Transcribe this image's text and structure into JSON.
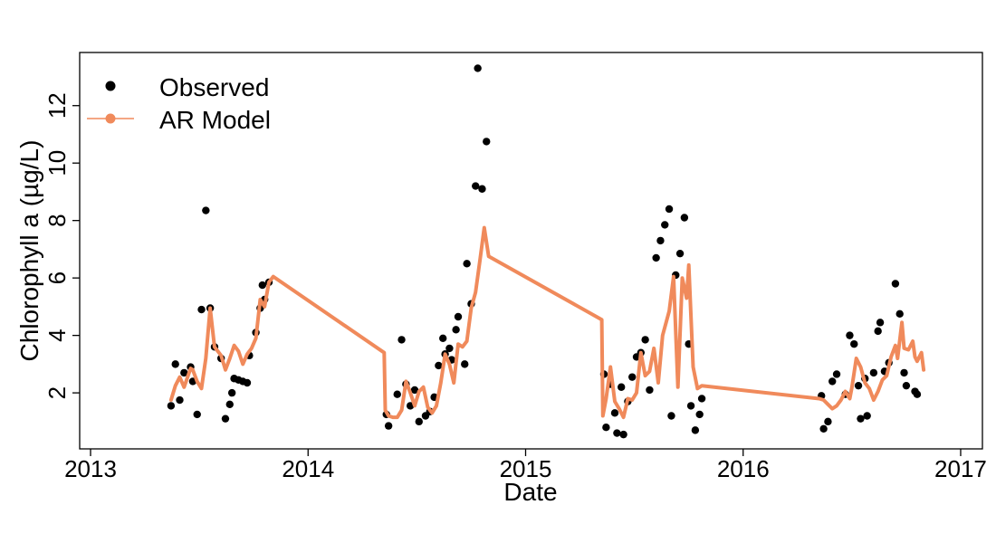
{
  "chart_data": {
    "type": "line",
    "xlabel": "Date",
    "ylabel": "Chlorophyll a (µg/L)",
    "xlim": [
      2012.95,
      2017.1
    ],
    "ylim": [
      0.05,
      13.85
    ],
    "x_ticks": [
      2013,
      2014,
      2015,
      2016,
      2017
    ],
    "y_ticks": [
      2,
      4,
      6,
      8,
      10,
      12
    ],
    "legend_position": "top-left",
    "grid": false,
    "series": [
      {
        "name": "Observed",
        "kind": "points",
        "color": "#000000",
        "points": [
          [
            2013.37,
            1.55
          ],
          [
            2013.39,
            3.0
          ],
          [
            2013.41,
            1.75
          ],
          [
            2013.43,
            2.7
          ],
          [
            2013.46,
            2.9
          ],
          [
            2013.47,
            2.4
          ],
          [
            2013.49,
            1.25
          ],
          [
            2013.51,
            4.9
          ],
          [
            2013.53,
            8.35
          ],
          [
            2013.55,
            4.95
          ],
          [
            2013.57,
            3.6
          ],
          [
            2013.6,
            3.2
          ],
          [
            2013.62,
            1.1
          ],
          [
            2013.64,
            1.6
          ],
          [
            2013.65,
            2.0
          ],
          [
            2013.66,
            2.5
          ],
          [
            2013.68,
            2.45
          ],
          [
            2013.7,
            2.4
          ],
          [
            2013.72,
            2.35
          ],
          [
            2013.73,
            3.3
          ],
          [
            2013.76,
            4.1
          ],
          [
            2013.78,
            4.95
          ],
          [
            2013.79,
            5.75
          ],
          [
            2013.8,
            5.25
          ],
          [
            2013.82,
            5.85
          ],
          [
            2014.36,
            1.25
          ],
          [
            2014.37,
            0.85
          ],
          [
            2014.41,
            1.95
          ],
          [
            2014.43,
            3.85
          ],
          [
            2014.45,
            2.3
          ],
          [
            2014.47,
            1.55
          ],
          [
            2014.49,
            2.1
          ],
          [
            2014.51,
            1.0
          ],
          [
            2014.54,
            1.2
          ],
          [
            2014.56,
            1.35
          ],
          [
            2014.58,
            1.85
          ],
          [
            2014.6,
            2.95
          ],
          [
            2014.62,
            3.9
          ],
          [
            2014.63,
            3.35
          ],
          [
            2014.65,
            3.55
          ],
          [
            2014.66,
            3.15
          ],
          [
            2014.68,
            4.2
          ],
          [
            2014.69,
            4.65
          ],
          [
            2014.72,
            3.0
          ],
          [
            2014.73,
            6.5
          ],
          [
            2014.75,
            5.1
          ],
          [
            2014.77,
            9.2
          ],
          [
            2014.78,
            13.3
          ],
          [
            2014.8,
            9.1
          ],
          [
            2014.82,
            10.75
          ],
          [
            2015.36,
            2.65
          ],
          [
            2015.37,
            0.8
          ],
          [
            2015.39,
            2.3
          ],
          [
            2015.41,
            1.3
          ],
          [
            2015.42,
            0.6
          ],
          [
            2015.44,
            2.2
          ],
          [
            2015.45,
            0.55
          ],
          [
            2015.47,
            1.7
          ],
          [
            2015.49,
            2.55
          ],
          [
            2015.51,
            3.25
          ],
          [
            2015.53,
            3.4
          ],
          [
            2015.55,
            3.85
          ],
          [
            2015.57,
            2.1
          ],
          [
            2015.6,
            6.7
          ],
          [
            2015.62,
            7.3
          ],
          [
            2015.64,
            7.85
          ],
          [
            2015.66,
            8.4
          ],
          [
            2015.67,
            1.2
          ],
          [
            2015.69,
            6.1
          ],
          [
            2015.71,
            6.85
          ],
          [
            2015.73,
            8.1
          ],
          [
            2015.75,
            3.7
          ],
          [
            2015.76,
            1.55
          ],
          [
            2015.78,
            0.7
          ],
          [
            2015.8,
            1.25
          ],
          [
            2015.81,
            1.8
          ],
          [
            2016.36,
            1.9
          ],
          [
            2016.37,
            0.75
          ],
          [
            2016.39,
            1.0
          ],
          [
            2016.41,
            2.4
          ],
          [
            2016.43,
            2.65
          ],
          [
            2016.47,
            1.95
          ],
          [
            2016.49,
            4.0
          ],
          [
            2016.51,
            3.7
          ],
          [
            2016.53,
            2.25
          ],
          [
            2016.54,
            1.1
          ],
          [
            2016.56,
            2.5
          ],
          [
            2016.57,
            1.2
          ],
          [
            2016.6,
            2.7
          ],
          [
            2016.62,
            4.15
          ],
          [
            2016.63,
            4.45
          ],
          [
            2016.65,
            2.75
          ],
          [
            2016.67,
            3.05
          ],
          [
            2016.7,
            5.8
          ],
          [
            2016.72,
            4.75
          ],
          [
            2016.74,
            2.7
          ],
          [
            2016.75,
            2.25
          ],
          [
            2016.79,
            2.05
          ],
          [
            2016.8,
            1.95
          ]
        ]
      },
      {
        "name": "AR Model",
        "kind": "line",
        "color": "#F08A5B",
        "points": [
          [
            2013.37,
            1.75
          ],
          [
            2013.39,
            2.25
          ],
          [
            2013.41,
            2.55
          ],
          [
            2013.43,
            2.2
          ],
          [
            2013.46,
            2.85
          ],
          [
            2013.47,
            2.8
          ],
          [
            2013.49,
            2.4
          ],
          [
            2013.51,
            2.15
          ],
          [
            2013.53,
            3.2
          ],
          [
            2013.55,
            4.95
          ],
          [
            2013.57,
            3.6
          ],
          [
            2013.6,
            3.3
          ],
          [
            2013.62,
            2.8
          ],
          [
            2013.64,
            3.2
          ],
          [
            2013.66,
            3.65
          ],
          [
            2013.68,
            3.45
          ],
          [
            2013.7,
            3.0
          ],
          [
            2013.72,
            3.35
          ],
          [
            2013.74,
            3.55
          ],
          [
            2013.76,
            3.9
          ],
          [
            2013.78,
            5.25
          ],
          [
            2013.8,
            5.0
          ],
          [
            2013.82,
            5.85
          ],
          [
            2013.84,
            6.05
          ],
          [
            2014.35,
            3.4
          ],
          [
            2014.355,
            1.4
          ],
          [
            2014.37,
            1.2
          ],
          [
            2014.39,
            1.15
          ],
          [
            2014.41,
            1.15
          ],
          [
            2014.43,
            1.4
          ],
          [
            2014.45,
            2.4
          ],
          [
            2014.47,
            2.0
          ],
          [
            2014.49,
            1.55
          ],
          [
            2014.51,
            2.05
          ],
          [
            2014.53,
            2.2
          ],
          [
            2014.55,
            1.5
          ],
          [
            2014.57,
            1.3
          ],
          [
            2014.59,
            1.55
          ],
          [
            2014.61,
            2.35
          ],
          [
            2014.63,
            3.35
          ],
          [
            2014.65,
            3.0
          ],
          [
            2014.67,
            2.35
          ],
          [
            2014.69,
            3.7
          ],
          [
            2014.71,
            3.6
          ],
          [
            2014.73,
            3.8
          ],
          [
            2014.75,
            4.95
          ],
          [
            2014.77,
            5.5
          ],
          [
            2014.79,
            6.6
          ],
          [
            2014.81,
            7.75
          ],
          [
            2014.83,
            6.75
          ],
          [
            2015.35,
            4.55
          ],
          [
            2015.355,
            1.2
          ],
          [
            2015.37,
            1.8
          ],
          [
            2015.39,
            2.9
          ],
          [
            2015.41,
            1.7
          ],
          [
            2015.43,
            1.45
          ],
          [
            2015.45,
            1.15
          ],
          [
            2015.47,
            1.8
          ],
          [
            2015.49,
            1.75
          ],
          [
            2015.51,
            2.0
          ],
          [
            2015.53,
            3.4
          ],
          [
            2015.55,
            2.6
          ],
          [
            2015.57,
            2.75
          ],
          [
            2015.59,
            3.55
          ],
          [
            2015.61,
            2.35
          ],
          [
            2015.63,
            4.0
          ],
          [
            2015.66,
            4.85
          ],
          [
            2015.68,
            6.05
          ],
          [
            2015.7,
            2.2
          ],
          [
            2015.72,
            6.0
          ],
          [
            2015.74,
            5.3
          ],
          [
            2015.75,
            6.45
          ],
          [
            2015.77,
            2.9
          ],
          [
            2015.79,
            2.15
          ],
          [
            2015.81,
            2.25
          ],
          [
            2016.35,
            1.8
          ],
          [
            2016.37,
            1.75
          ],
          [
            2016.39,
            1.6
          ],
          [
            2016.41,
            1.45
          ],
          [
            2016.43,
            1.55
          ],
          [
            2016.45,
            1.75
          ],
          [
            2016.47,
            2.05
          ],
          [
            2016.49,
            1.8
          ],
          [
            2016.5,
            2.2
          ],
          [
            2016.52,
            3.2
          ],
          [
            2016.54,
            2.9
          ],
          [
            2016.56,
            2.35
          ],
          [
            2016.58,
            2.15
          ],
          [
            2016.6,
            1.75
          ],
          [
            2016.62,
            2.05
          ],
          [
            2016.64,
            2.45
          ],
          [
            2016.66,
            2.6
          ],
          [
            2016.68,
            3.25
          ],
          [
            2016.7,
            3.65
          ],
          [
            2016.71,
            3.2
          ],
          [
            2016.73,
            4.45
          ],
          [
            2016.74,
            3.55
          ],
          [
            2016.76,
            3.5
          ],
          [
            2016.78,
            3.8
          ],
          [
            2016.79,
            3.25
          ],
          [
            2016.8,
            3.1
          ],
          [
            2016.82,
            3.4
          ],
          [
            2016.83,
            2.8
          ]
        ]
      }
    ]
  }
}
